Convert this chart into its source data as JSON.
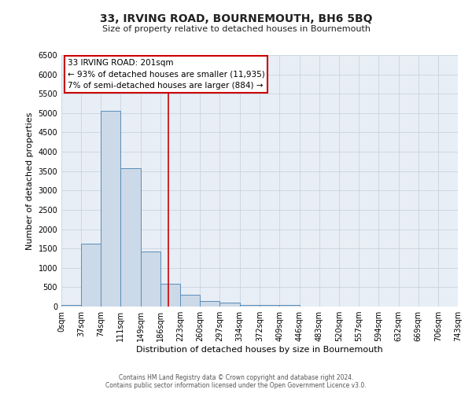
{
  "title": "33, IRVING ROAD, BOURNEMOUTH, BH6 5BQ",
  "subtitle": "Size of property relative to detached houses in Bournemouth",
  "xlabel": "Distribution of detached houses by size in Bournemouth",
  "ylabel": "Number of detached properties",
  "bin_edges": [
    0,
    37,
    74,
    111,
    149,
    186,
    223,
    260,
    297,
    334,
    372,
    409,
    446,
    483,
    520,
    557,
    594,
    632,
    669,
    706,
    743
  ],
  "bin_counts": [
    50,
    1620,
    5050,
    3580,
    1420,
    580,
    300,
    140,
    100,
    50,
    50,
    50,
    10,
    5,
    2,
    0,
    0,
    0,
    0,
    0
  ],
  "bar_facecolor": "#ccd9e8",
  "bar_edgecolor": "#5b8db8",
  "grid_color": "#c8d4e0",
  "background_color": "#e8eef5",
  "vline_x": 201,
  "vline_color": "#cc0000",
  "ylim": [
    0,
    6500
  ],
  "yticks": [
    0,
    500,
    1000,
    1500,
    2000,
    2500,
    3000,
    3500,
    4000,
    4500,
    5000,
    5500,
    6000,
    6500
  ],
  "annotation_title": "33 IRVING ROAD: 201sqm",
  "annotation_line1": "← 93% of detached houses are smaller (11,935)",
  "annotation_line2": "7% of semi-detached houses are larger (884) →",
  "annotation_box_color": "#cc0000",
  "footer_line1": "Contains HM Land Registry data © Crown copyright and database right 2024.",
  "footer_line2": "Contains public sector information licensed under the Open Government Licence v3.0.",
  "title_fontsize": 10,
  "subtitle_fontsize": 8,
  "axis_label_fontsize": 8,
  "tick_fontsize": 7,
  "annotation_fontsize": 7.5,
  "footer_fontsize": 5.5
}
